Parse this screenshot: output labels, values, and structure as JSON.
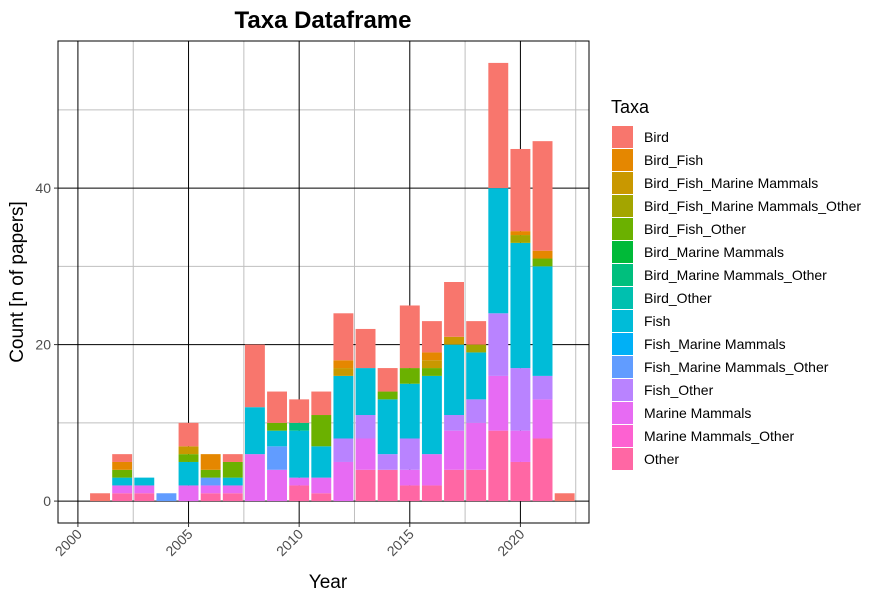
{
  "chart_data": {
    "type": "bar",
    "stacked": true,
    "title": "Taxa Dataframe",
    "xlabel": "Year",
    "ylabel": "Count [n of papers]",
    "xlim": [
      1999.1,
      2023.1
    ],
    "ylim": [
      -2.8,
      58.8
    ],
    "x_ticks": [
      2000,
      2005,
      2010,
      2015,
      2020
    ],
    "y_ticks": [
      0,
      20,
      40
    ],
    "grid": true,
    "legend_title": "Taxa",
    "legend_position": "right",
    "series": [
      {
        "name": "Bird",
        "color": "#F8766D"
      },
      {
        "name": "Bird_Fish",
        "color": "#E58700"
      },
      {
        "name": "Bird_Fish_Marine Mammals",
        "color": "#C99800"
      },
      {
        "name": "Bird_Fish_Marine Mammals_Other",
        "color": "#A3A500"
      },
      {
        "name": "Bird_Fish_Other",
        "color": "#6BB100"
      },
      {
        "name": "Bird_Marine Mammals",
        "color": "#00BA38"
      },
      {
        "name": "Bird_Marine Mammals_Other",
        "color": "#00BF7D"
      },
      {
        "name": "Bird_Other",
        "color": "#00C0AF"
      },
      {
        "name": "Fish",
        "color": "#00BCD8"
      },
      {
        "name": "Fish_Marine Mammals",
        "color": "#00B0F6"
      },
      {
        "name": "Fish_Marine Mammals_Other",
        "color": "#619CFF"
      },
      {
        "name": "Fish_Other",
        "color": "#B983FF"
      },
      {
        "name": "Marine Mammals",
        "color": "#E76BF3"
      },
      {
        "name": "Marine Mammals_Other",
        "color": "#FD61D1"
      },
      {
        "name": "Other",
        "color": "#FF67A4"
      }
    ],
    "bars": [
      {
        "year": 2001,
        "stack": [
          [
            "Bird",
            1
          ]
        ]
      },
      {
        "year": 2002,
        "stack": [
          [
            "Other",
            1
          ],
          [
            "Marine Mammals",
            1
          ],
          [
            "Fish",
            1
          ],
          [
            "Bird_Fish_Other",
            1
          ],
          [
            "Bird_Fish",
            1
          ],
          [
            "Bird",
            1
          ]
        ]
      },
      {
        "year": 2003,
        "stack": [
          [
            "Other",
            1
          ],
          [
            "Marine Mammals",
            1
          ],
          [
            "Fish",
            1
          ]
        ]
      },
      {
        "year": 2004,
        "stack": [
          [
            "Fish_Marine Mammals_Other",
            1
          ]
        ]
      },
      {
        "year": 2005,
        "stack": [
          [
            "Marine Mammals",
            2
          ],
          [
            "Fish",
            3
          ],
          [
            "Bird_Fish_Other",
            1
          ],
          [
            "Bird_Fish_Marine Mammals",
            1
          ],
          [
            "Bird",
            3
          ]
        ]
      },
      {
        "year": 2006,
        "stack": [
          [
            "Other",
            1
          ],
          [
            "Marine Mammals",
            1
          ],
          [
            "Fish_Marine Mammals_Other",
            1
          ],
          [
            "Bird_Fish_Other",
            1
          ],
          [
            "Bird_Fish",
            2
          ]
        ]
      },
      {
        "year": 2007,
        "stack": [
          [
            "Other",
            1
          ],
          [
            "Marine Mammals",
            1
          ],
          [
            "Fish",
            1
          ],
          [
            "Bird_Fish_Other",
            2
          ],
          [
            "Bird",
            1
          ]
        ]
      },
      {
        "year": 2008,
        "stack": [
          [
            "Marine Mammals",
            6
          ],
          [
            "Fish",
            6
          ],
          [
            "Bird",
            8
          ]
        ]
      },
      {
        "year": 2009,
        "stack": [
          [
            "Marine Mammals",
            4
          ],
          [
            "Fish_Marine Mammals_Other",
            3
          ],
          [
            "Fish",
            2
          ],
          [
            "Bird_Fish_Other",
            1
          ],
          [
            "Bird",
            4
          ]
        ]
      },
      {
        "year": 2010,
        "stack": [
          [
            "Other",
            2
          ],
          [
            "Marine Mammals",
            1
          ],
          [
            "Fish",
            6
          ],
          [
            "Bird_Marine Mammals_Other",
            1
          ],
          [
            "Bird",
            3
          ]
        ]
      },
      {
        "year": 2011,
        "stack": [
          [
            "Other",
            1
          ],
          [
            "Marine Mammals",
            2
          ],
          [
            "Fish",
            4
          ],
          [
            "Bird_Fish_Other",
            4
          ],
          [
            "Bird",
            3
          ]
        ]
      },
      {
        "year": 2012,
        "stack": [
          [
            "Marine Mammals",
            5
          ],
          [
            "Fish_Other",
            3
          ],
          [
            "Fish",
            8
          ],
          [
            "Bird_Fish_Marine Mammals",
            1
          ],
          [
            "Bird_Fish",
            1
          ],
          [
            "Bird",
            6
          ]
        ]
      },
      {
        "year": 2013,
        "stack": [
          [
            "Other",
            4
          ],
          [
            "Marine Mammals",
            4
          ],
          [
            "Fish_Other",
            3
          ],
          [
            "Fish",
            6
          ],
          [
            "Bird",
            5
          ]
        ]
      },
      {
        "year": 2014,
        "stack": [
          [
            "Other",
            4
          ],
          [
            "Fish_Other",
            2
          ],
          [
            "Fish",
            7
          ],
          [
            "Bird_Fish_Other",
            1
          ],
          [
            "Bird",
            3
          ]
        ]
      },
      {
        "year": 2015,
        "stack": [
          [
            "Other",
            2
          ],
          [
            "Marine Mammals",
            2
          ],
          [
            "Fish_Other",
            4
          ],
          [
            "Fish",
            7
          ],
          [
            "Bird_Fish_Other",
            2
          ],
          [
            "Bird",
            8
          ]
        ]
      },
      {
        "year": 2016,
        "stack": [
          [
            "Other",
            2
          ],
          [
            "Marine Mammals",
            4
          ],
          [
            "Fish",
            10
          ],
          [
            "Bird_Fish_Other",
            1
          ],
          [
            "Bird_Fish_Marine Mammals",
            1
          ],
          [
            "Bird_Fish",
            1
          ],
          [
            "Bird",
            4
          ]
        ]
      },
      {
        "year": 2017,
        "stack": [
          [
            "Other",
            4
          ],
          [
            "Marine Mammals",
            5
          ],
          [
            "Fish_Other",
            2
          ],
          [
            "Fish",
            9
          ],
          [
            "Bird_Fish_Marine Mammals",
            1
          ],
          [
            "Bird",
            7
          ]
        ]
      },
      {
        "year": 2018,
        "stack": [
          [
            "Other",
            4
          ],
          [
            "Marine Mammals",
            6
          ],
          [
            "Fish_Other",
            3
          ],
          [
            "Fish",
            6
          ],
          [
            "Bird_Fish_Marine Mammals_Other",
            1
          ],
          [
            "Bird",
            3
          ]
        ]
      },
      {
        "year": 2019,
        "stack": [
          [
            "Other",
            9
          ],
          [
            "Marine Mammals",
            7
          ],
          [
            "Fish_Other",
            8
          ],
          [
            "Fish",
            16
          ],
          [
            "Bird",
            16
          ]
        ]
      },
      {
        "year": 2020,
        "stack": [
          [
            "Other",
            5
          ],
          [
            "Marine Mammals",
            4
          ],
          [
            "Fish_Other",
            8
          ],
          [
            "Fish",
            16
          ],
          [
            "Bird_Fish_Marine Mammals_Other",
            1
          ],
          [
            "Bird_Fish",
            0.5
          ],
          [
            "Bird",
            10.5
          ]
        ]
      },
      {
        "year": 2021,
        "stack": [
          [
            "Other",
            8
          ],
          [
            "Marine Mammals",
            5
          ],
          [
            "Fish_Other",
            3
          ],
          [
            "Fish",
            14
          ],
          [
            "Bird_Fish_Other",
            1
          ],
          [
            "Bird_Fish",
            1
          ],
          [
            "Bird",
            14
          ]
        ]
      },
      {
        "year": 2022,
        "stack": [
          [
            "Bird",
            1
          ]
        ]
      }
    ]
  }
}
